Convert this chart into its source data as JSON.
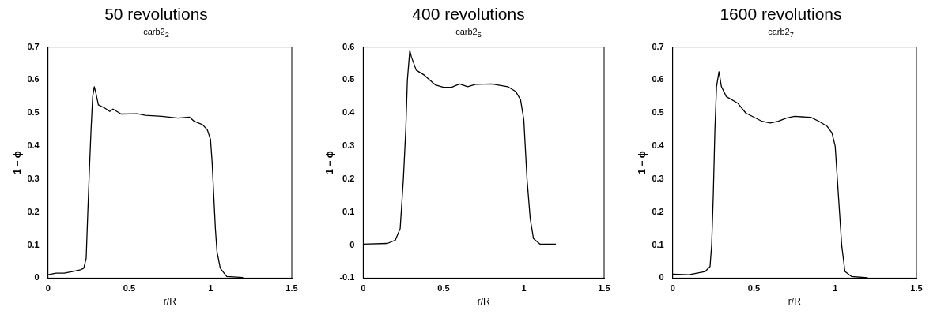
{
  "chart_data": [
    {
      "type": "line",
      "title": "50 revolutions",
      "subtitle": "carb2$_{2}$",
      "xlabel": "r/R",
      "ylabel": "1 − ϕ",
      "xlim": [
        0,
        1.5
      ],
      "xticks": [
        0,
        0.5,
        1,
        1.5
      ],
      "ylim": [
        0,
        0.7
      ],
      "yticks": [
        0,
        0.1,
        0.2,
        0.3,
        0.4,
        0.5,
        0.6,
        0.7
      ],
      "grid": false,
      "legend": false,
      "marker": "none",
      "line_style": "solid",
      "x": [
        0,
        0.05,
        0.1,
        0.15,
        0.2,
        0.22,
        0.235,
        0.245,
        0.255,
        0.265,
        0.275,
        0.285,
        0.295,
        0.31,
        0.35,
        0.38,
        0.4,
        0.45,
        0.55,
        0.6,
        0.7,
        0.8,
        0.87,
        0.9,
        0.95,
        0.98,
        1.0,
        1.01,
        1.02,
        1.03,
        1.04,
        1.06,
        1.1,
        1.2
      ],
      "series": [
        {
          "color": "#000000",
          "values": [
            0.01,
            0.015,
            0.015,
            0.02,
            0.025,
            0.03,
            0.06,
            0.2,
            0.33,
            0.45,
            0.55,
            0.58,
            0.56,
            0.525,
            0.515,
            0.505,
            0.512,
            0.497,
            0.498,
            0.493,
            0.49,
            0.485,
            0.488,
            0.475,
            0.465,
            0.45,
            0.42,
            0.35,
            0.25,
            0.15,
            0.08,
            0.03,
            0.005,
            0.002
          ]
        }
      ]
    },
    {
      "type": "line",
      "title": "400 revolutions",
      "subtitle": "carb2$_{5}$",
      "xlabel": "r/R",
      "ylabel": "1 − ϕ",
      "xlim": [
        0,
        1.5
      ],
      "xticks": [
        0,
        0.5,
        1,
        1.5
      ],
      "ylim": [
        -0.1,
        0.6
      ],
      "yticks": [
        -0.1,
        0,
        0.1,
        0.2,
        0.3,
        0.4,
        0.5,
        0.6
      ],
      "grid": false,
      "legend": false,
      "marker": "none",
      "line_style": "solid",
      "x": [
        0,
        0.15,
        0.2,
        0.23,
        0.25,
        0.265,
        0.275,
        0.285,
        0.29,
        0.3,
        0.33,
        0.38,
        0.45,
        0.5,
        0.55,
        0.6,
        0.65,
        0.7,
        0.8,
        0.9,
        0.95,
        0.98,
        1.0,
        1.02,
        1.04,
        1.06,
        1.1,
        1.2
      ],
      "series": [
        {
          "color": "#000000",
          "values": [
            0.003,
            0.005,
            0.015,
            0.05,
            0.2,
            0.35,
            0.5,
            0.56,
            0.59,
            0.57,
            0.53,
            0.515,
            0.485,
            0.478,
            0.478,
            0.488,
            0.48,
            0.487,
            0.488,
            0.48,
            0.465,
            0.44,
            0.38,
            0.2,
            0.08,
            0.02,
            0.003,
            0.003
          ]
        }
      ]
    },
    {
      "type": "line",
      "title": "1600 revolutions",
      "subtitle": "carb2$_{7}$",
      "xlabel": "r/R",
      "ylabel": "1 − ϕ",
      "xlim": [
        0,
        1.5
      ],
      "xticks": [
        0,
        0.5,
        1,
        1.5
      ],
      "ylim": [
        0,
        0.7
      ],
      "yticks": [
        0,
        0.1,
        0.2,
        0.3,
        0.4,
        0.5,
        0.6,
        0.7
      ],
      "grid": false,
      "legend": false,
      "marker": "none",
      "line_style": "solid",
      "x": [
        0,
        0.1,
        0.15,
        0.2,
        0.23,
        0.24,
        0.25,
        0.26,
        0.27,
        0.285,
        0.3,
        0.33,
        0.4,
        0.45,
        0.55,
        0.6,
        0.65,
        0.7,
        0.75,
        0.85,
        0.9,
        0.95,
        0.98,
        1.0,
        1.02,
        1.04,
        1.06,
        1.1,
        1.2
      ],
      "series": [
        {
          "color": "#000000",
          "values": [
            0.012,
            0.01,
            0.015,
            0.02,
            0.035,
            0.1,
            0.25,
            0.45,
            0.58,
            0.625,
            0.58,
            0.55,
            0.53,
            0.5,
            0.475,
            0.47,
            0.475,
            0.485,
            0.49,
            0.487,
            0.475,
            0.46,
            0.44,
            0.4,
            0.25,
            0.1,
            0.02,
            0.005,
            0.001
          ]
        }
      ]
    }
  ]
}
